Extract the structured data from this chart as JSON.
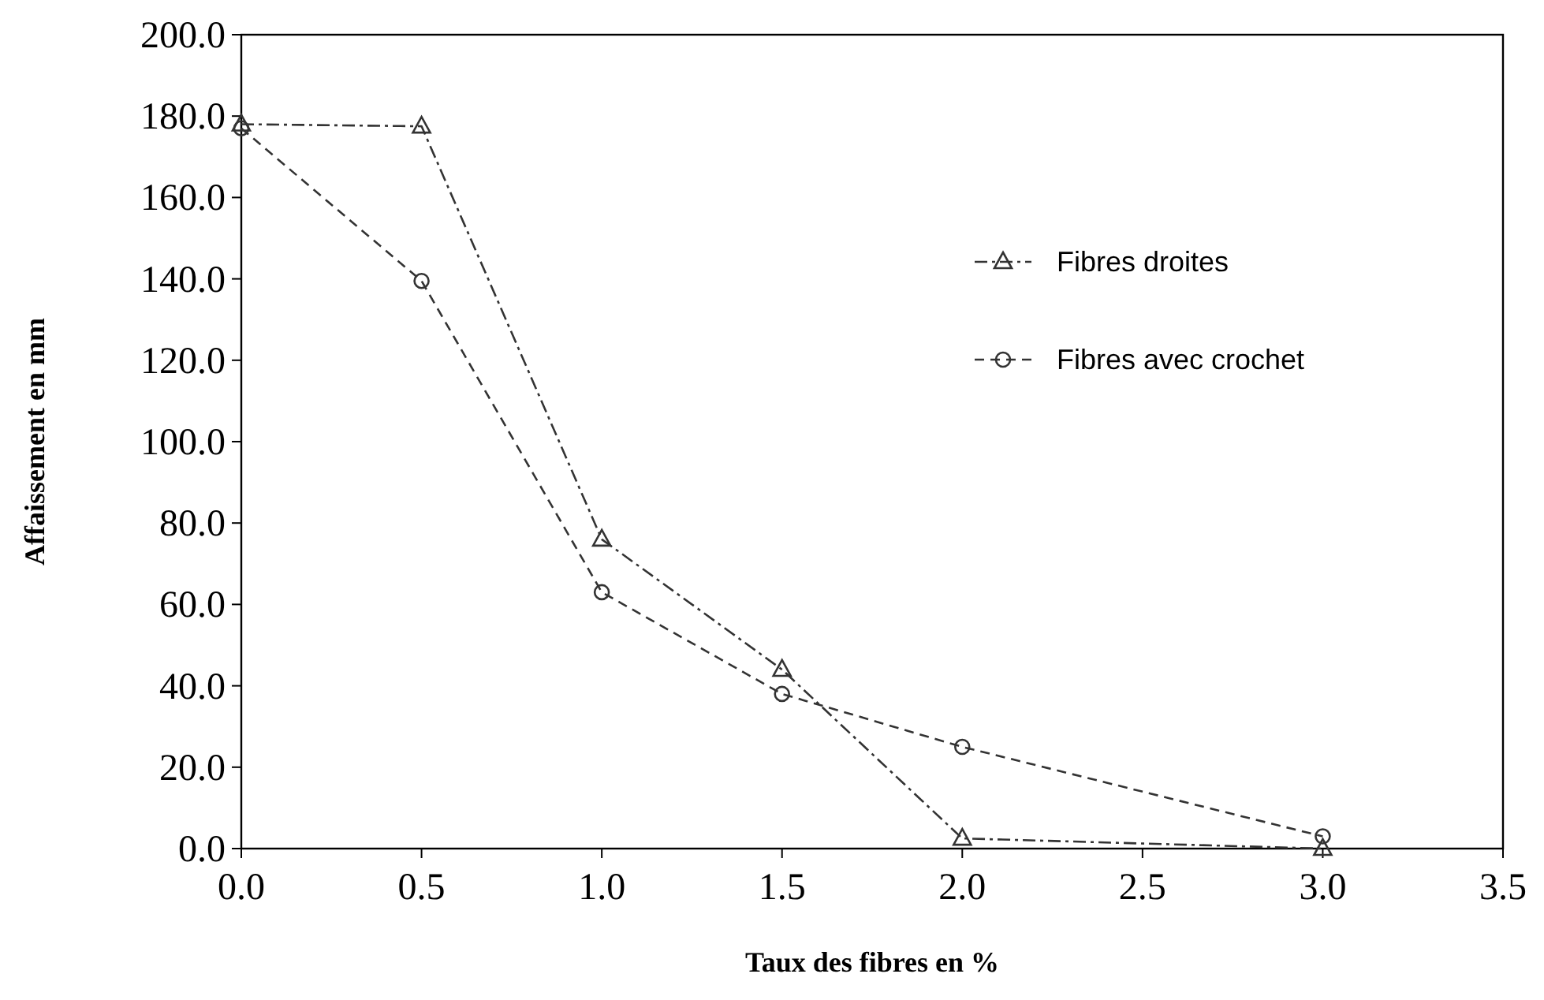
{
  "chart_data": {
    "type": "line",
    "xlabel": "Taux des fibres en %",
    "ylabel": "Affaissement en mm",
    "xlim": [
      0,
      3.5
    ],
    "xticks": [
      {
        "value": 0,
        "label": "0.0"
      },
      {
        "value": 0.5,
        "label": "0.5"
      },
      {
        "value": 1,
        "label": "1.0"
      },
      {
        "value": 1.5,
        "label": "1.5"
      },
      {
        "value": 2,
        "label": "2.0"
      },
      {
        "value": 2.5,
        "label": "2.5"
      },
      {
        "value": 3,
        "label": "3.0"
      },
      {
        "value": 3.5,
        "label": "3.5"
      }
    ],
    "ylim": [
      0,
      200
    ],
    "yticks": [
      {
        "value": 0,
        "label": "0.0"
      },
      {
        "value": 20,
        "label": "20.0"
      },
      {
        "value": 40,
        "label": "40.0"
      },
      {
        "value": 60,
        "label": "60.0"
      },
      {
        "value": 80,
        "label": "80.0"
      },
      {
        "value": 100,
        "label": "100.0"
      },
      {
        "value": 120,
        "label": "120.0"
      },
      {
        "value": 140,
        "label": "140.0"
      },
      {
        "value": 160,
        "label": "160.0"
      },
      {
        "value": 180,
        "label": "180.0"
      },
      {
        "value": 200,
        "label": "200.0"
      }
    ],
    "x": [
      0,
      0.5,
      1,
      1.5,
      2,
      3
    ],
    "grid": false,
    "legend": "right",
    "series": [
      {
        "name": "Fibres droites",
        "color": "#333333",
        "marker": "triangle",
        "line_style": "dashdot",
        "values": [
          178,
          177.5,
          76,
          44,
          2.5,
          0
        ]
      },
      {
        "name": "Fibres avec crochet",
        "color": "#333333",
        "marker": "circle",
        "line_style": "dashed",
        "values": [
          177,
          139.5,
          63,
          38,
          25,
          3
        ]
      }
    ]
  }
}
